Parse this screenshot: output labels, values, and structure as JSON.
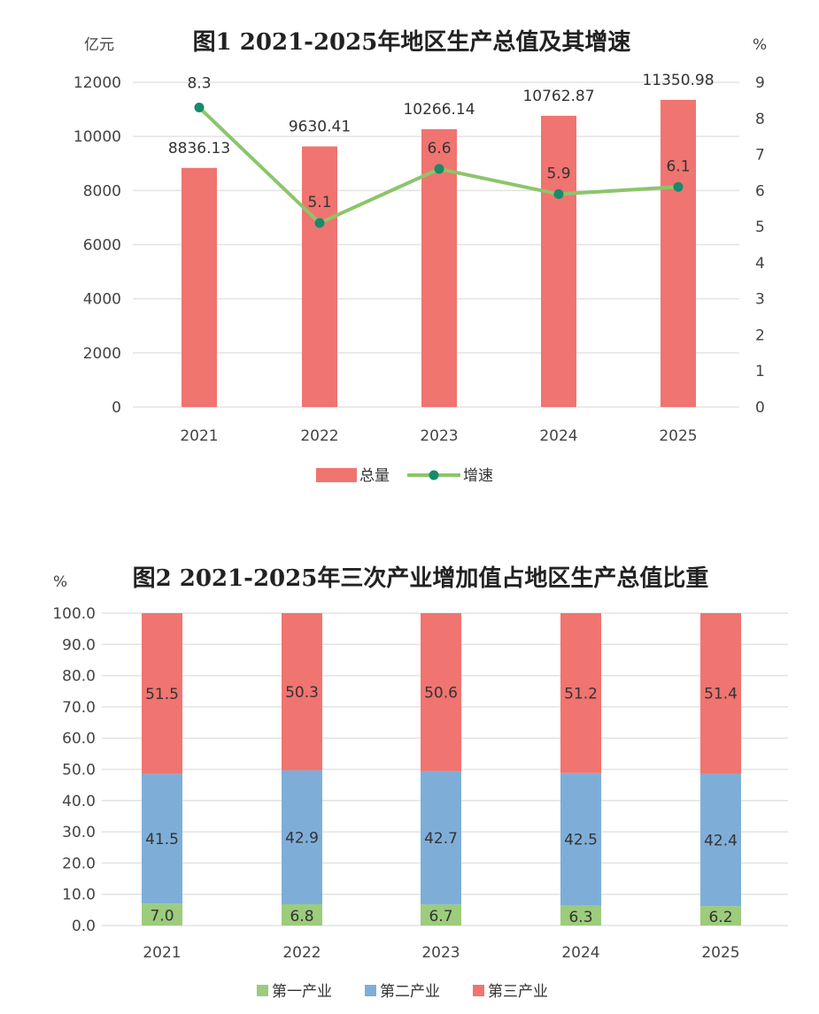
{
  "chart_data": [
    {
      "type": "bar+line",
      "title": "图1   2021-2025年地区生产总值及其增速",
      "ylabel_left": "亿元",
      "ylabel_right": "%",
      "categories": [
        "2021",
        "2022",
        "2023",
        "2024",
        "2025"
      ],
      "ylim_left": [
        0,
        12000
      ],
      "yticks_left": [
        "0",
        "2000",
        "4000",
        "6000",
        "8000",
        "10000",
        "12000"
      ],
      "ylim_right": [
        0,
        9
      ],
      "yticks_right": [
        "0",
        "1",
        "2",
        "3",
        "4",
        "5",
        "6",
        "7",
        "8",
        "9"
      ],
      "grid": true,
      "legend_position": "bottom",
      "series": [
        {
          "name": "总量",
          "type": "bar",
          "axis": "left",
          "values": [
            8836.13,
            9630.41,
            10266.14,
            10762.87,
            11350.98
          ],
          "labels": [
            "8836.13",
            "9630.41",
            "10266.14",
            "10762.87",
            "11350.98"
          ],
          "color": "#f07470"
        },
        {
          "name": "增速",
          "type": "line",
          "axis": "right",
          "values": [
            8.3,
            5.1,
            6.6,
            5.9,
            6.1
          ],
          "labels": [
            "8.3",
            "5.1",
            "6.6",
            "5.9",
            "6.1"
          ],
          "color": "#8cc56a",
          "marker_color": "#178a6c"
        }
      ]
    },
    {
      "type": "stacked-bar",
      "title": "图2   2021-2025年三次产业增加值占地区生产总值比重",
      "ylabel": "%",
      "categories": [
        "2021",
        "2022",
        "2023",
        "2024",
        "2025"
      ],
      "ylim": [
        0,
        100
      ],
      "yticks": [
        "0.0",
        "10.0",
        "20.0",
        "30.0",
        "40.0",
        "50.0",
        "60.0",
        "70.0",
        "80.0",
        "90.0",
        "100.0"
      ],
      "grid": true,
      "legend_position": "bottom",
      "series": [
        {
          "name": "第一产业",
          "values": [
            7.0,
            6.8,
            6.7,
            6.3,
            6.2
          ],
          "labels": [
            "7.0",
            "6.8",
            "6.7",
            "6.3",
            "6.2"
          ],
          "color": "#9ccc7c"
        },
        {
          "name": "第二产业",
          "values": [
            41.5,
            42.9,
            42.7,
            42.5,
            42.4
          ],
          "labels": [
            "41.5",
            "42.9",
            "42.7",
            "42.5",
            "42.4"
          ],
          "color": "#7eaed8"
        },
        {
          "name": "第三产业",
          "values": [
            51.5,
            50.3,
            50.6,
            51.2,
            51.4
          ],
          "labels": [
            "51.5",
            "50.3",
            "50.6",
            "51.2",
            "51.4"
          ],
          "color": "#f07470"
        }
      ]
    }
  ]
}
